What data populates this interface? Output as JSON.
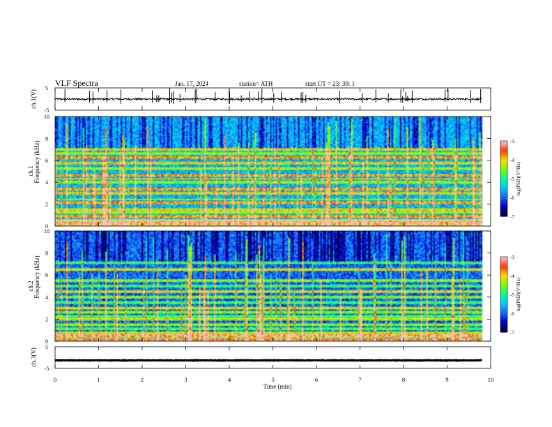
{
  "header": {
    "title": "VLF  Spectra",
    "date": "Jan.  17,  2024",
    "station": "station= ATH",
    "start": "start  UT  =     23: 30: 1"
  },
  "chart_data": [
    {
      "type": "line",
      "panel": "ch1",
      "ylabel": "ch.1(V)",
      "yticks": [
        "5",
        "-5"
      ],
      "ylim": [
        -5,
        5
      ],
      "xlim": [
        0,
        10
      ],
      "trace": {
        "color": "#000000",
        "baseline": 0.0,
        "noise_amplitude": 0.4,
        "end_time": 9.8
      }
    },
    {
      "type": "heatmap",
      "panel": "ch1-spectrogram",
      "ylabel_top": "ch.1",
      "ylabel": "Frequency  (kHz)",
      "yticks": [
        "0",
        "2",
        "4",
        "6",
        "8",
        "10"
      ],
      "ylim": [
        0,
        10
      ],
      "xlim": [
        0,
        10
      ],
      "data_end_time": 9.8,
      "colorbar": {
        "label": "log(PSD)(V²/Hz)",
        "ticks": [
          "-3",
          "-4",
          "-5",
          "-6",
          "-7"
        ],
        "range": [
          -7,
          -3
        ]
      },
      "bands_khz": [
        0.2,
        0.5,
        0.8,
        1.2,
        1.5,
        2.1,
        2.4,
        3.0,
        3.3,
        4.0,
        4.3,
        4.6,
        5.2,
        5.8,
        6.3,
        6.6,
        7.0
      ],
      "base_level": -5.6
    },
    {
      "type": "heatmap",
      "panel": "ch2-spectrogram",
      "ylabel_top": "ch.2",
      "ylabel": "Frequency  (kHz)",
      "yticks": [
        "0",
        "2",
        "4",
        "6",
        "8",
        "10"
      ],
      "ylim": [
        0,
        10
      ],
      "xlim": [
        0,
        10
      ],
      "data_end_time": 9.8,
      "colorbar": {
        "label": "log(PSD)(V²/Hz)",
        "ticks": [
          "-3",
          "-4",
          "-5",
          "-6",
          "-7"
        ],
        "range": [
          -7,
          -3
        ]
      },
      "bands_khz": [
        0.1,
        0.4,
        0.7,
        1.1,
        1.4,
        2.0,
        2.2,
        2.6,
        3.0,
        3.5,
        4.0,
        4.5,
        5.0,
        5.5,
        6.5,
        7.2
      ],
      "base_level": -6.0
    },
    {
      "type": "line",
      "panel": "ch3",
      "ylabel": "ch.3(V)",
      "yticks": [
        "5",
        "-5"
      ],
      "ylim": [
        -5,
        5
      ],
      "xlim": [
        0,
        10
      ],
      "trace": {
        "color": "#000000",
        "baseline": -1.3,
        "noise_amplitude": 0.12,
        "end_time": 9.8
      },
      "xlabel": "Time  (min)",
      "xticks": [
        "0",
        "1",
        "2",
        "3",
        "4",
        "5",
        "6",
        "7",
        "8",
        "9",
        "10"
      ]
    }
  ],
  "colors": {
    "colormap": [
      "#00003c",
      "#0000c8",
      "#1e64ff",
      "#00c8ff",
      "#00ff9b",
      "#78ff00",
      "#ffdc00",
      "#ff3c00",
      "#ffbfc0"
    ]
  }
}
